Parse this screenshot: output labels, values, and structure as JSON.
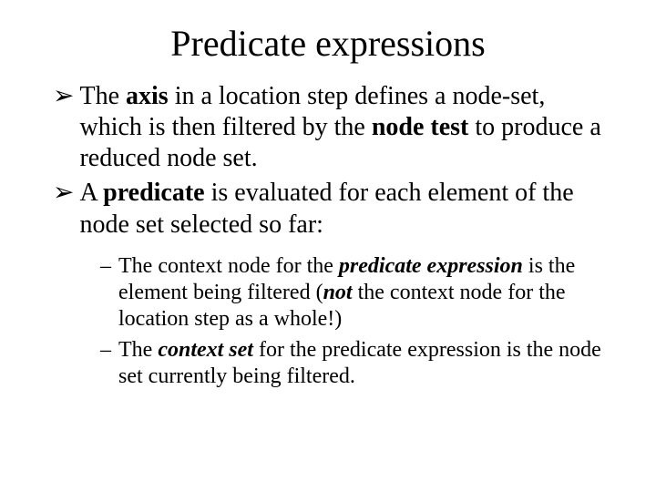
{
  "title": "Predicate expressions",
  "bullets": [
    {
      "marker": "➢",
      "segments": [
        {
          "t": "The "
        },
        {
          "t": "axis",
          "cls": "b"
        },
        {
          "t": " in a location step defines a node-set, which is then filtered by the "
        },
        {
          "t": "node test",
          "cls": "b"
        },
        {
          "t": " to produce a reduced node set."
        }
      ]
    },
    {
      "marker": "➢",
      "segments": [
        {
          "t": "A "
        },
        {
          "t": "predicate",
          "cls": "b"
        },
        {
          "t": " is evaluated for each element of the node set selected so far:"
        }
      ]
    }
  ],
  "subbullets": [
    {
      "marker": "–",
      "segments": [
        {
          "t": "The context node for the "
        },
        {
          "t": "predicate expression",
          "cls": "bi"
        },
        {
          "t": " is the element being filtered ("
        },
        {
          "t": "not",
          "cls": "bi"
        },
        {
          "t": " the context node for the location step as a whole!)"
        }
      ]
    },
    {
      "marker": "–",
      "segments": [
        {
          "t": "The "
        },
        {
          "t": "context set",
          "cls": "bi"
        },
        {
          "t": " for the predicate expression is the node set currently being filtered."
        }
      ]
    }
  ]
}
